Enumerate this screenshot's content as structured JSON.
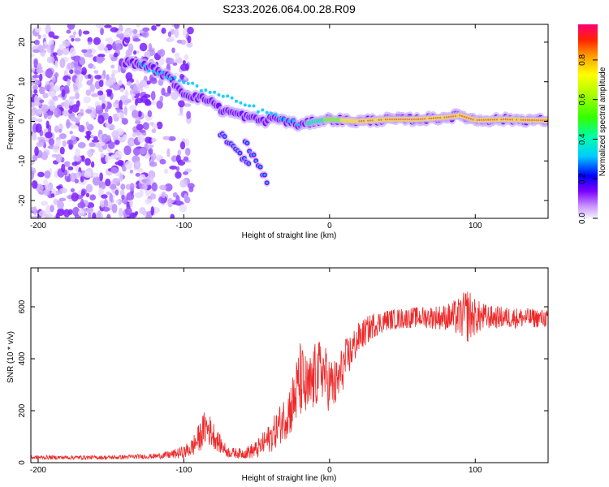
{
  "title": "S233.2026.064.00.28.R09",
  "colors": {
    "snr_line": "#ee2a2a",
    "band": "#ee1111",
    "frame": "#000000"
  },
  "chart_data": [
    {
      "type": "heatmap",
      "title": "S233.2026.064.00.28.R09",
      "xlabel": "Height of straight line (km)",
      "ylabel": "Frequency (Hz)",
      "xlim": [
        -205,
        150
      ],
      "ylim": [
        -24.5,
        24.5
      ],
      "x_ticks": [
        -200,
        -100,
        0,
        100
      ],
      "x_tick_labels": [
        "-200",
        "-100",
        "0",
        "100"
      ],
      "y_ticks": [
        -20,
        -10,
        0,
        10,
        20
      ],
      "y_tick_labels": [
        "-20",
        "-10",
        "0",
        "10",
        "20"
      ],
      "colorbar": {
        "label": "Normalized spectral amplitude",
        "range": [
          0,
          0.98
        ],
        "ticks": [
          0,
          0.2,
          0.4,
          0.6,
          0.8
        ],
        "tick_labels": [
          "0.0",
          "0.2",
          "0.4",
          "0.6",
          "0.8"
        ]
      },
      "ridge": {
        "x": [
          -140,
          -125,
          -110,
          -100,
          -90,
          -80,
          -75,
          -65,
          -55,
          -45,
          -38,
          -30,
          -20,
          -10,
          0,
          20,
          40,
          60,
          80,
          90,
          100,
          120,
          150
        ],
        "y": [
          15,
          14,
          11,
          7,
          6,
          5,
          3,
          2,
          1,
          0,
          1,
          0,
          -1,
          0,
          0.5,
          0,
          0.5,
          0.5,
          1,
          1.5,
          0.3,
          0.5,
          0.2
        ]
      },
      "side_tracks": [
        {
          "x": [
            -75,
            -68,
            -60,
            -55
          ],
          "y": [
            -3,
            -6,
            -9,
            -11
          ]
        },
        {
          "x": [
            -58,
            -52,
            -46,
            -42
          ],
          "y": [
            -5,
            -9,
            -13,
            -16
          ]
        }
      ]
    },
    {
      "type": "line",
      "xlabel": "Height of straight line (km)",
      "ylabel": "SNR (10 * v/v)",
      "xlim": [
        -205,
        150
      ],
      "ylim": [
        0,
        750
      ],
      "x_ticks": [
        -200,
        -100,
        0,
        100
      ],
      "x_tick_labels": [
        "-200",
        "-100",
        "0",
        "100"
      ],
      "y_ticks": [
        0,
        200,
        400,
        600
      ],
      "y_tick_labels": [
        "0",
        "200",
        "400",
        "600"
      ],
      "series": [
        {
          "name": "SNR",
          "envelope_x": [
            -205,
            -150,
            -120,
            -110,
            -100,
            -95,
            -90,
            -85,
            -80,
            -75,
            -70,
            -60,
            -50,
            -40,
            -30,
            -25,
            -20,
            -15,
            -10,
            -5,
            0,
            5,
            10,
            20,
            30,
            40,
            60,
            80,
            90,
            95,
            100,
            110,
            150
          ],
          "envelope_y": [
            20,
            20,
            25,
            30,
            40,
            55,
            90,
            140,
            110,
            70,
            40,
            35,
            50,
            100,
            180,
            230,
            320,
            270,
            330,
            360,
            300,
            300,
            380,
            480,
            530,
            550,
            560,
            560,
            560,
            570,
            560,
            560,
            555
          ],
          "noise": [
            8,
            8,
            10,
            15,
            25,
            35,
            55,
            70,
            55,
            35,
            20,
            20,
            35,
            60,
            90,
            120,
            150,
            130,
            130,
            120,
            110,
            100,
            90,
            60,
            50,
            40,
            40,
            50,
            80,
            110,
            70,
            45,
            35
          ]
        }
      ]
    }
  ]
}
